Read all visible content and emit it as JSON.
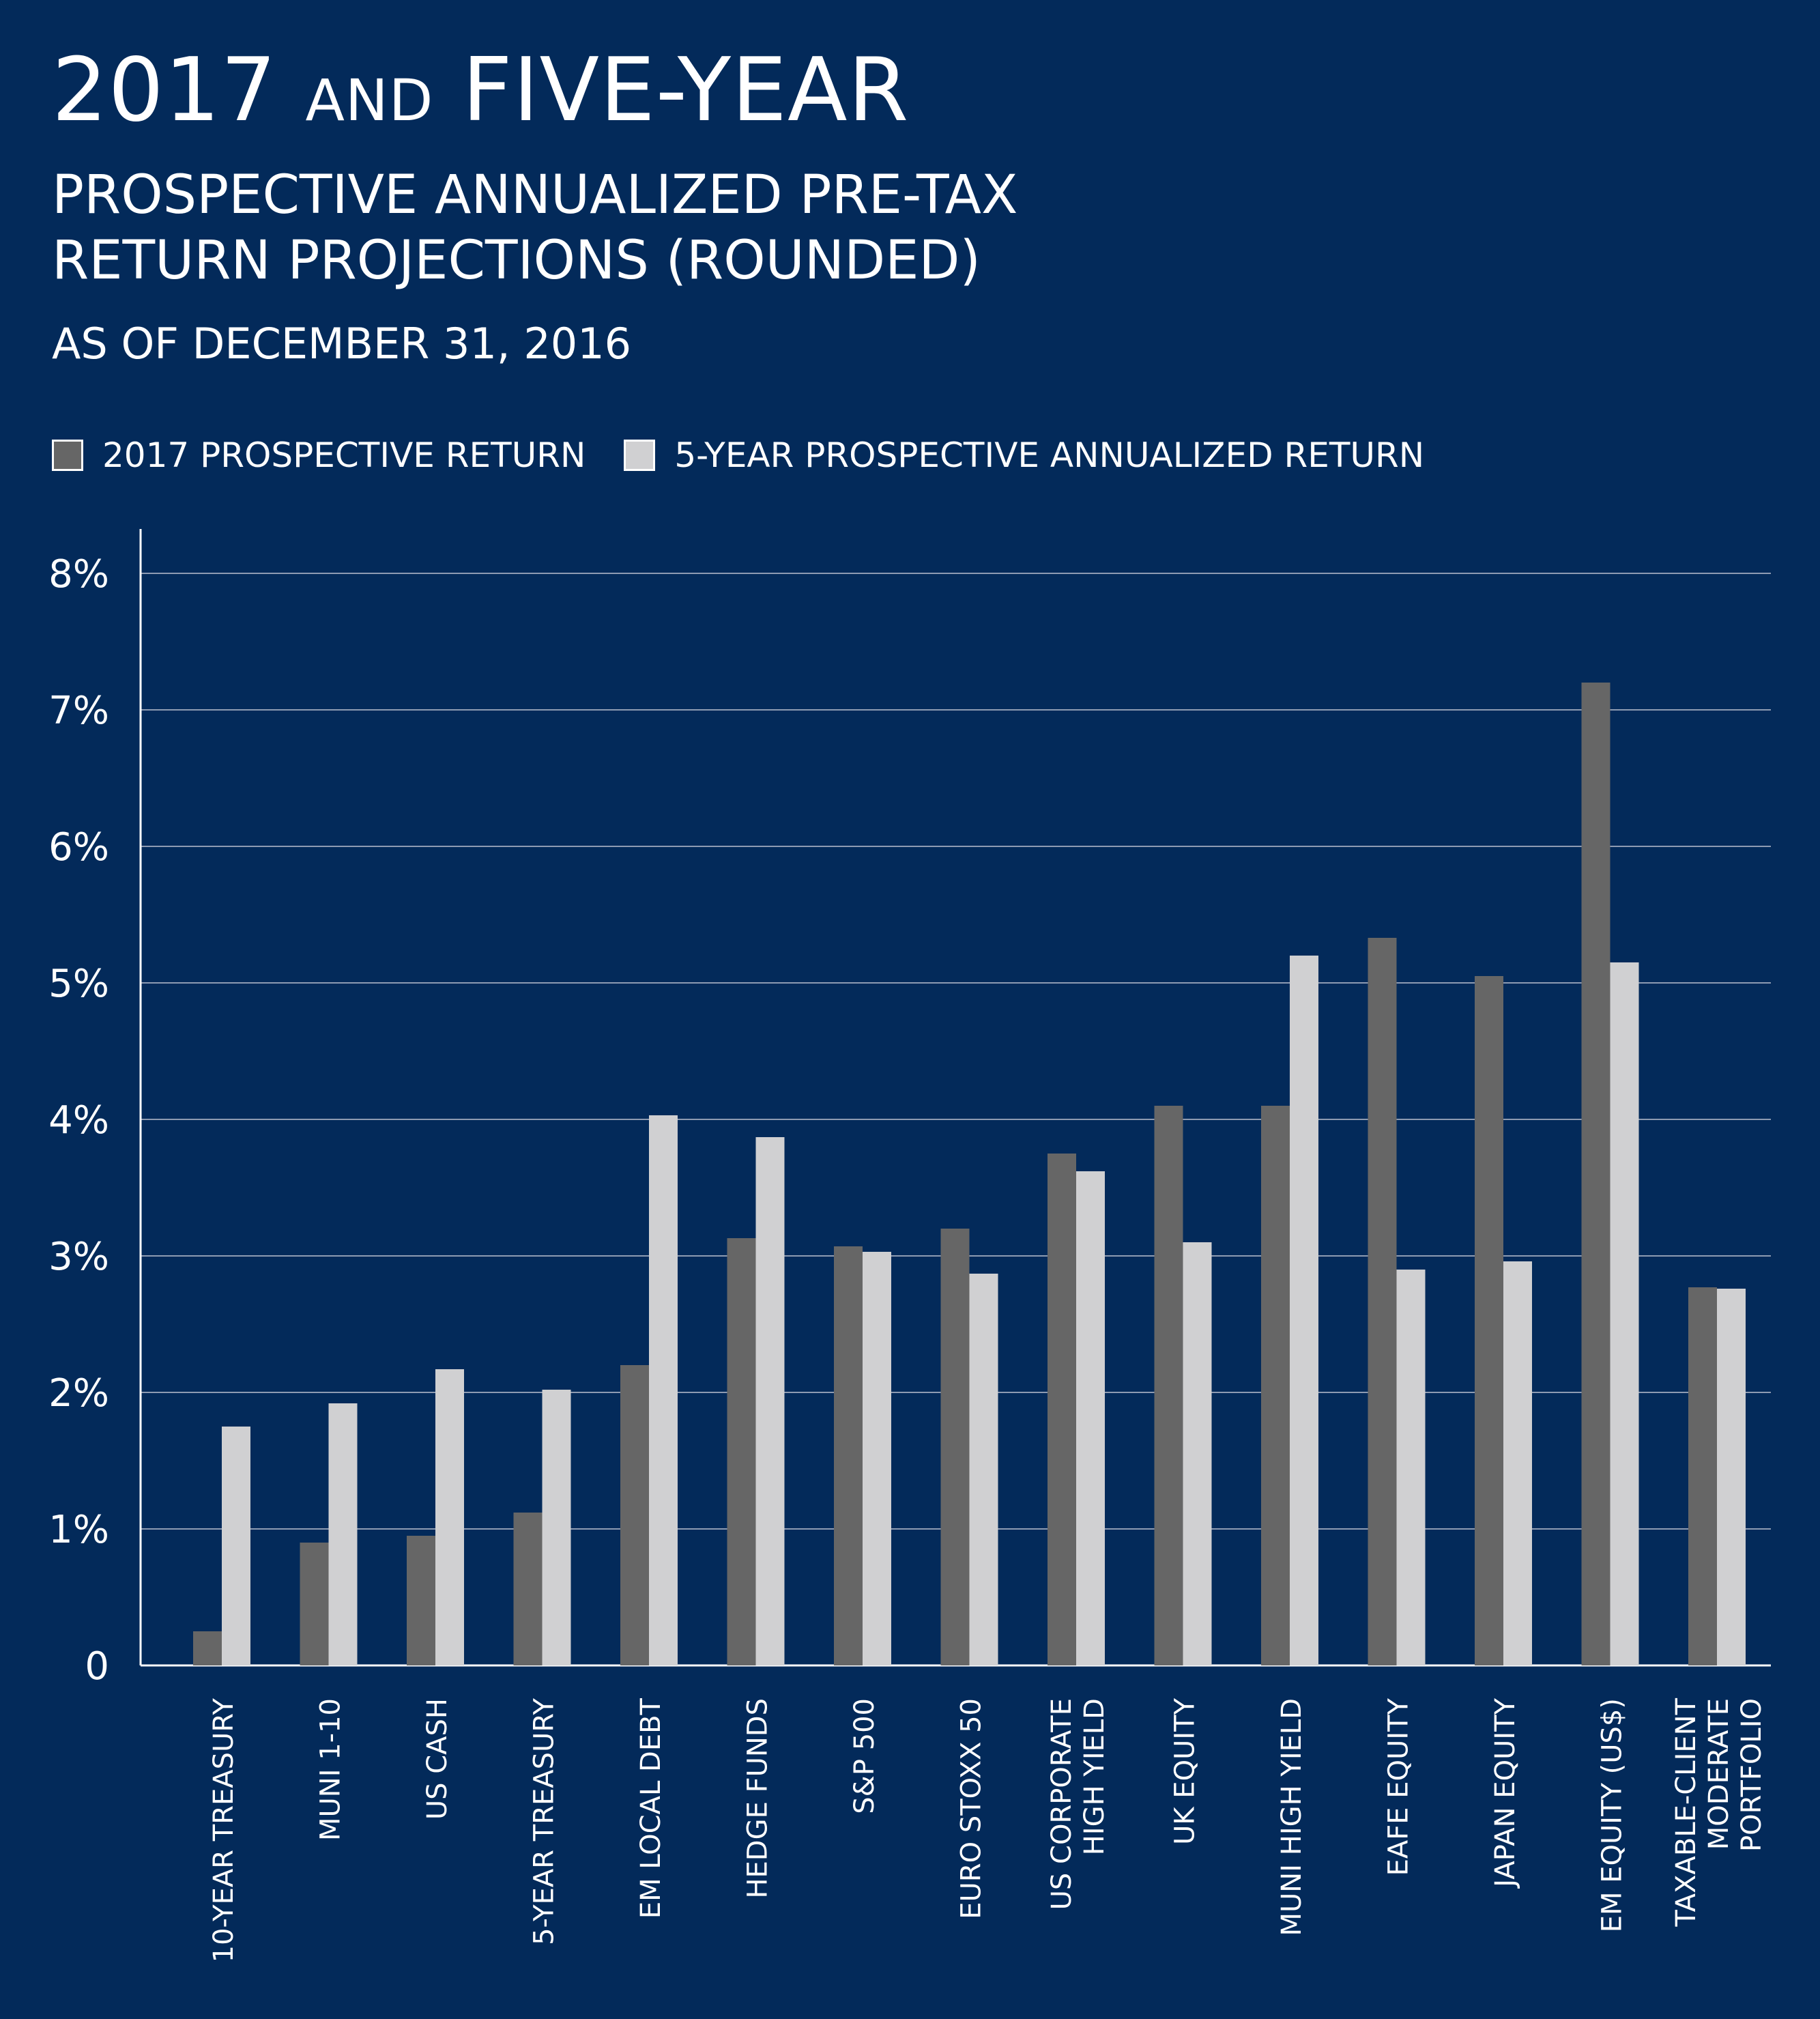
{
  "title": {
    "year": "2017",
    "connector": "AND",
    "rest": "FIVE-YEAR",
    "subtitle_line1": "PROSPECTIVE ANNUALIZED PRE-TAX",
    "subtitle_line2": "RETURN PROJECTIONS (ROUNDED)",
    "as_of": "AS OF DECEMBER 31, 2016"
  },
  "colors": {
    "background": "#032a5a",
    "series_2017": "#666666",
    "series_5yr": "#d0d0d2",
    "text": "#ffffff",
    "grid": "#8e9bb2"
  },
  "chart_data": {
    "type": "bar",
    "categories": [
      [
        "10-YEAR TREASURY"
      ],
      [
        "MUNI 1-10"
      ],
      [
        "US CASH"
      ],
      [
        "5-YEAR TREASURY"
      ],
      [
        "EM LOCAL DEBT"
      ],
      [
        "HEDGE FUNDS"
      ],
      [
        "S&P 500"
      ],
      [
        "EURO STOXX 50"
      ],
      [
        "US CORPORATE",
        "HIGH YIELD"
      ],
      [
        "UK EQUITY"
      ],
      [
        "MUNI HIGH YIELD"
      ],
      [
        "EAFE EQUITY"
      ],
      [
        "JAPAN EQUITY"
      ],
      [
        "EM EQUITY (US$)"
      ],
      [
        "TAXABLE-CLIENT",
        "MODERATE",
        "PORTFOLIO"
      ]
    ],
    "series": [
      {
        "name": "2017 PROSPECTIVE RETURN",
        "values": [
          0.25,
          0.9,
          0.95,
          1.12,
          2.2,
          3.13,
          3.07,
          3.2,
          3.75,
          4.1,
          4.1,
          5.33,
          5.05,
          7.2,
          2.77
        ]
      },
      {
        "name": "5-YEAR PROSPECTIVE ANNUALIZED RETURN",
        "values": [
          1.75,
          1.92,
          2.17,
          2.02,
          4.03,
          3.87,
          3.03,
          2.87,
          3.62,
          3.1,
          5.2,
          2.9,
          2.96,
          5.15,
          2.76
        ]
      }
    ],
    "yticks": [
      "0",
      "1%",
      "2%",
      "3%",
      "4%",
      "5%",
      "6%",
      "7%",
      "8%"
    ],
    "ylim": [
      0,
      8.3
    ],
    "grid": true,
    "legend_position": "top-left"
  }
}
